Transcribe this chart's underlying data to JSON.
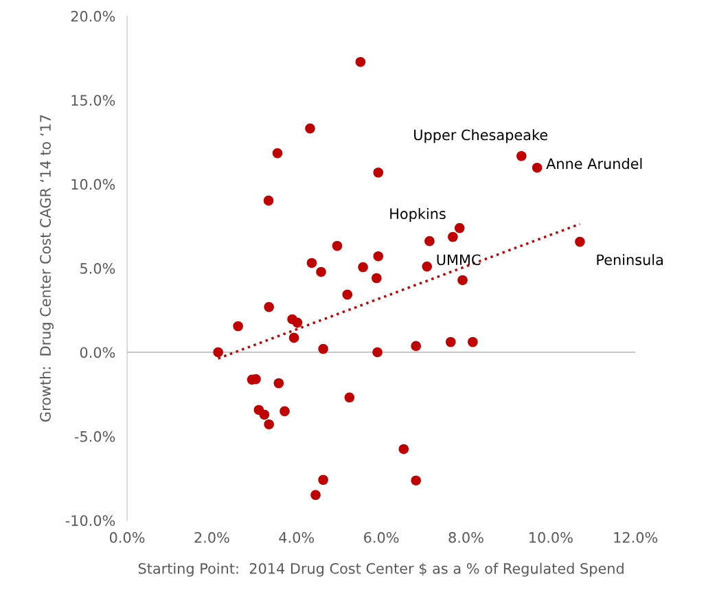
{
  "chart_data": {
    "type": "scatter",
    "xlabel": "Starting Point:  2014 Drug Cost Center $ as a % of Regulated Spend",
    "ylabel": "Growth:  Drug Center Cost CAGR ‘14 to ‘17",
    "xlim": [
      0,
      12
    ],
    "ylim": [
      -10,
      20
    ],
    "xticks": [
      {
        "value": 0,
        "label": "0.0%"
      },
      {
        "value": 2,
        "label": "2.0%"
      },
      {
        "value": 4,
        "label": "4.0%"
      },
      {
        "value": 6,
        "label": "6.0%"
      },
      {
        "value": 8,
        "label": "8.0%"
      },
      {
        "value": 10,
        "label": "10.0%"
      },
      {
        "value": 12,
        "label": "12.0%"
      }
    ],
    "yticks": [
      {
        "value": -10,
        "label": "-10.0%"
      },
      {
        "value": -5,
        "label": "-5.0%"
      },
      {
        "value": 0,
        "label": "0.0%"
      },
      {
        "value": 5,
        "label": "5.0%"
      },
      {
        "value": 10,
        "label": "10.0%"
      },
      {
        "value": 15,
        "label": "15.0%"
      },
      {
        "value": 20,
        "label": "20.0%"
      }
    ],
    "grid": false,
    "legend": false,
    "marker": "circle",
    "ref_lines": [
      {
        "axis": "y",
        "value": 0,
        "color": "#bfbfbf"
      }
    ],
    "series": [
      {
        "type": "scatter",
        "color": "#c00000",
        "x": [
          2.15,
          2.62,
          2.95,
          3.04,
          3.11,
          3.24,
          3.35,
          3.35,
          3.34,
          3.55,
          3.58,
          3.72,
          3.9,
          4.02,
          3.94,
          4.32,
          4.36,
          4.45,
          4.58,
          4.63,
          4.63,
          4.96,
          5.2,
          5.25,
          5.51,
          5.57,
          5.93,
          5.89,
          5.91,
          5.93,
          6.53,
          6.82,
          6.82,
          7.08,
          7.14,
          7.64,
          7.69,
          7.85,
          7.92,
          8.16,
          9.31,
          9.68,
          10.69
        ],
        "values": [
          0.0,
          1.55,
          -1.63,
          -1.6,
          -3.43,
          -3.71,
          -4.29,
          2.69,
          9.02,
          11.84,
          -1.84,
          -3.51,
          1.96,
          1.76,
          0.86,
          13.31,
          5.31,
          -8.49,
          4.78,
          0.2,
          -7.59,
          6.33,
          3.43,
          -2.69,
          17.27,
          5.06,
          10.69,
          4.41,
          0.0,
          5.71,
          -5.76,
          0.37,
          -7.63,
          5.1,
          6.61,
          0.61,
          6.86,
          7.39,
          4.29,
          0.61,
          11.67,
          10.98,
          6.57
        ]
      },
      {
        "type": "line",
        "color": "#c00000",
        "line_style": "dotted",
        "marker": "none",
        "x": [
          2.15,
          10.69
        ],
        "values": [
          -0.37,
          7.63
        ]
      }
    ],
    "annotations": [
      {
        "text": "Upper Chesapeake",
        "x": 9.31,
        "y": 11.67
      },
      {
        "text": "Anne Arundel",
        "x": 9.68,
        "y": 10.98
      },
      {
        "text": "Hopkins",
        "x": 7.85,
        "y": 7.39
      },
      {
        "text": "UMMC",
        "x": 7.08,
        "y": 5.1
      },
      {
        "text": "Peninsula",
        "x": 10.69,
        "y": 6.57
      }
    ]
  }
}
